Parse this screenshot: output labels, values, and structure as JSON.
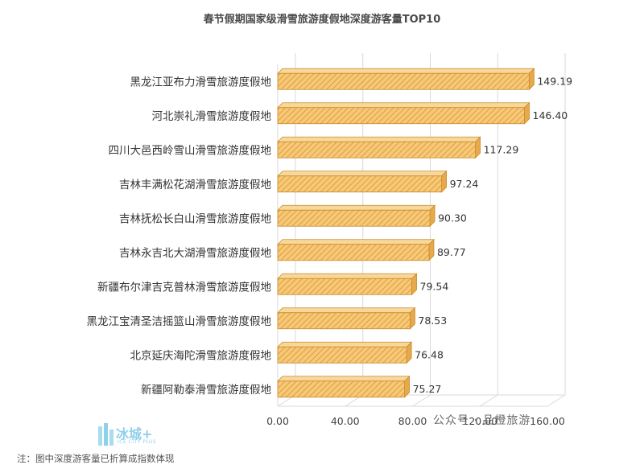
{
  "chart_data": {
    "type": "bar",
    "orientation": "horizontal",
    "title": "春节假期国家级滑雪旅游度假地深度游客量TOP10",
    "categories": [
      "黑龙江亚布力滑雪旅游度假地",
      "河北崇礼滑雪旅游度假地",
      "四川大邑西岭雪山滑雪旅游度假地",
      "吉林丰满松花湖滑雪旅游度假地",
      "吉林抚松长白山滑雪旅游度假地",
      "吉林永吉北大湖滑雪旅游度假地",
      "新疆布尔津吉克普林滑雪旅游度假地",
      "黑龙江宝清圣洁摇篮山滑雪旅游度假地",
      "北京延庆海陀滑雪旅游度假地",
      "新疆阿勒泰滑雪旅游度假地"
    ],
    "values": [
      149.19,
      146.4,
      117.29,
      97.24,
      90.3,
      89.77,
      79.54,
      78.53,
      76.48,
      75.27
    ],
    "value_labels": [
      "149.19",
      "146.40",
      "117.29",
      "97.24",
      "90.30",
      "89.77",
      "79.54",
      "78.53",
      "76.48",
      "75.27"
    ],
    "x_ticks": [
      "0.00",
      "40.00",
      "80.00",
      "120.00",
      "160.00"
    ],
    "xlim": [
      0,
      160
    ],
    "grid": true,
    "legend": "none",
    "bar_color": "#f2b45a",
    "bar_edge": "#c98a28"
  },
  "note": "注：图中深度游客量已折算成指数体现",
  "logo": {
    "main": "冰城+",
    "sub": "ICE CITY PLUS"
  },
  "watermark": "公众号 · 品橙旅游"
}
